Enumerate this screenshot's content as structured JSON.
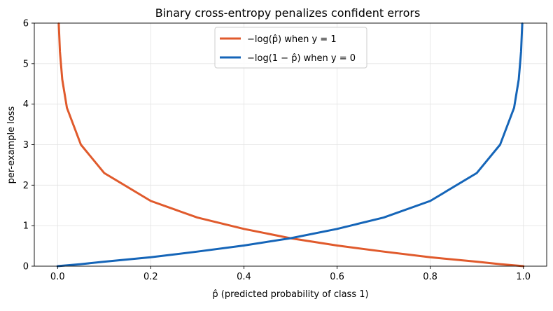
{
  "chart_data": {
    "type": "line",
    "title": "Binary cross-entropy penalizes confident errors",
    "xlabel": "p̂ (predicted probability of class 1)",
    "ylabel": "per-example loss",
    "xlim": [
      -0.05,
      1.05
    ],
    "ylim": [
      0,
      6
    ],
    "xticks": [
      "0.0",
      "0.2",
      "0.4",
      "0.6",
      "0.8",
      "1.0"
    ],
    "yticks": [
      "0",
      "1",
      "2",
      "3",
      "4",
      "5",
      "6"
    ],
    "grid": true,
    "legend_position": "top-center",
    "series": [
      {
        "name": "−log(p̂)  when y = 1",
        "color": "#e05a2c",
        "x": [
          0.0025,
          0.005,
          0.01,
          0.02,
          0.05,
          0.1,
          0.2,
          0.3,
          0.4,
          0.5,
          0.6,
          0.7,
          0.8,
          0.9,
          0.95,
          0.99,
          1.0
        ],
        "y": [
          5.99,
          5.3,
          4.61,
          3.91,
          3.0,
          2.3,
          1.61,
          1.2,
          0.92,
          0.69,
          0.51,
          0.36,
          0.22,
          0.11,
          0.05,
          0.01,
          0.0
        ]
      },
      {
        "name": "−log(1 − p̂)  when y = 0",
        "color": "#1565b8",
        "x": [
          0.0,
          0.01,
          0.05,
          0.1,
          0.2,
          0.3,
          0.4,
          0.5,
          0.6,
          0.7,
          0.8,
          0.9,
          0.95,
          0.98,
          0.99,
          0.995,
          0.9975
        ],
        "y": [
          0.0,
          0.01,
          0.05,
          0.11,
          0.22,
          0.36,
          0.51,
          0.69,
          0.92,
          1.2,
          1.61,
          2.3,
          3.0,
          3.91,
          4.61,
          5.3,
          5.99
        ]
      }
    ]
  }
}
